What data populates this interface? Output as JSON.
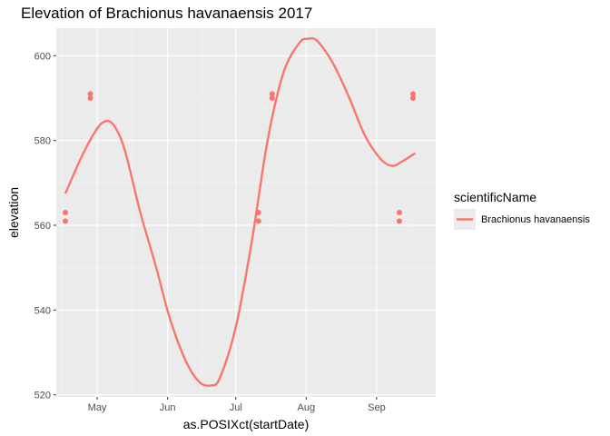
{
  "chart_data": {
    "type": "scatter",
    "title": "Elevation of Brachionus havanaensis 2017",
    "xlabel": "as.POSIXct(startDate)",
    "ylabel": "elevation",
    "x_ticks": [
      {
        "label": "May",
        "date": "2017-05-01"
      },
      {
        "label": "Jun",
        "date": "2017-06-01"
      },
      {
        "label": "Jul",
        "date": "2017-07-01"
      },
      {
        "label": "Aug",
        "date": "2017-08-01"
      },
      {
        "label": "Sep",
        "date": "2017-09-01"
      }
    ],
    "xlim": [
      "2017-04-13",
      "2017-09-27"
    ],
    "ylim": [
      519.5,
      606.5
    ],
    "y_ticks": [
      520,
      540,
      560,
      580,
      600
    ],
    "grid": true,
    "legend": {
      "title": "scientificName",
      "position": "right",
      "entries": [
        {
          "label": "Brachionus havanaensis",
          "color": "#F8766D"
        }
      ]
    },
    "series": [
      {
        "name": "Brachionus havanaensis",
        "color": "#F8766D",
        "points": [
          {
            "x": "2017-04-17",
            "y": 563
          },
          {
            "x": "2017-04-17",
            "y": 561
          },
          {
            "x": "2017-04-28",
            "y": 591
          },
          {
            "x": "2017-04-28",
            "y": 590
          },
          {
            "x": "2017-07-11",
            "y": 563
          },
          {
            "x": "2017-07-11",
            "y": 561
          },
          {
            "x": "2017-07-17",
            "y": 591
          },
          {
            "x": "2017-07-17",
            "y": 590
          },
          {
            "x": "2017-09-11",
            "y": 563
          },
          {
            "x": "2017-09-11",
            "y": 561
          },
          {
            "x": "2017-09-17",
            "y": 591
          },
          {
            "x": "2017-09-17",
            "y": 590
          }
        ],
        "smooth": [
          {
            "x": "2017-04-17",
            "y": 567.5
          },
          {
            "x": "2017-04-24",
            "y": 576
          },
          {
            "x": "2017-04-30",
            "y": 582
          },
          {
            "x": "2017-05-04",
            "y": 584.4
          },
          {
            "x": "2017-05-08",
            "y": 583.8
          },
          {
            "x": "2017-05-13",
            "y": 578
          },
          {
            "x": "2017-05-20",
            "y": 563
          },
          {
            "x": "2017-05-27",
            "y": 550
          },
          {
            "x": "2017-06-02",
            "y": 538
          },
          {
            "x": "2017-06-09",
            "y": 528
          },
          {
            "x": "2017-06-15",
            "y": 523
          },
          {
            "x": "2017-06-20",
            "y": 522.2
          },
          {
            "x": "2017-06-24",
            "y": 524
          },
          {
            "x": "2017-07-01",
            "y": 536
          },
          {
            "x": "2017-07-08",
            "y": 556
          },
          {
            "x": "2017-07-15",
            "y": 580
          },
          {
            "x": "2017-07-22",
            "y": 596
          },
          {
            "x": "2017-07-29",
            "y": 603
          },
          {
            "x": "2017-08-02",
            "y": 604
          },
          {
            "x": "2017-08-06",
            "y": 603.4
          },
          {
            "x": "2017-08-13",
            "y": 598
          },
          {
            "x": "2017-08-20",
            "y": 590
          },
          {
            "x": "2017-08-27",
            "y": 581
          },
          {
            "x": "2017-09-03",
            "y": 575.5
          },
          {
            "x": "2017-09-08",
            "y": 574
          },
          {
            "x": "2017-09-12",
            "y": 575
          },
          {
            "x": "2017-09-18",
            "y": 577
          }
        ]
      }
    ]
  }
}
